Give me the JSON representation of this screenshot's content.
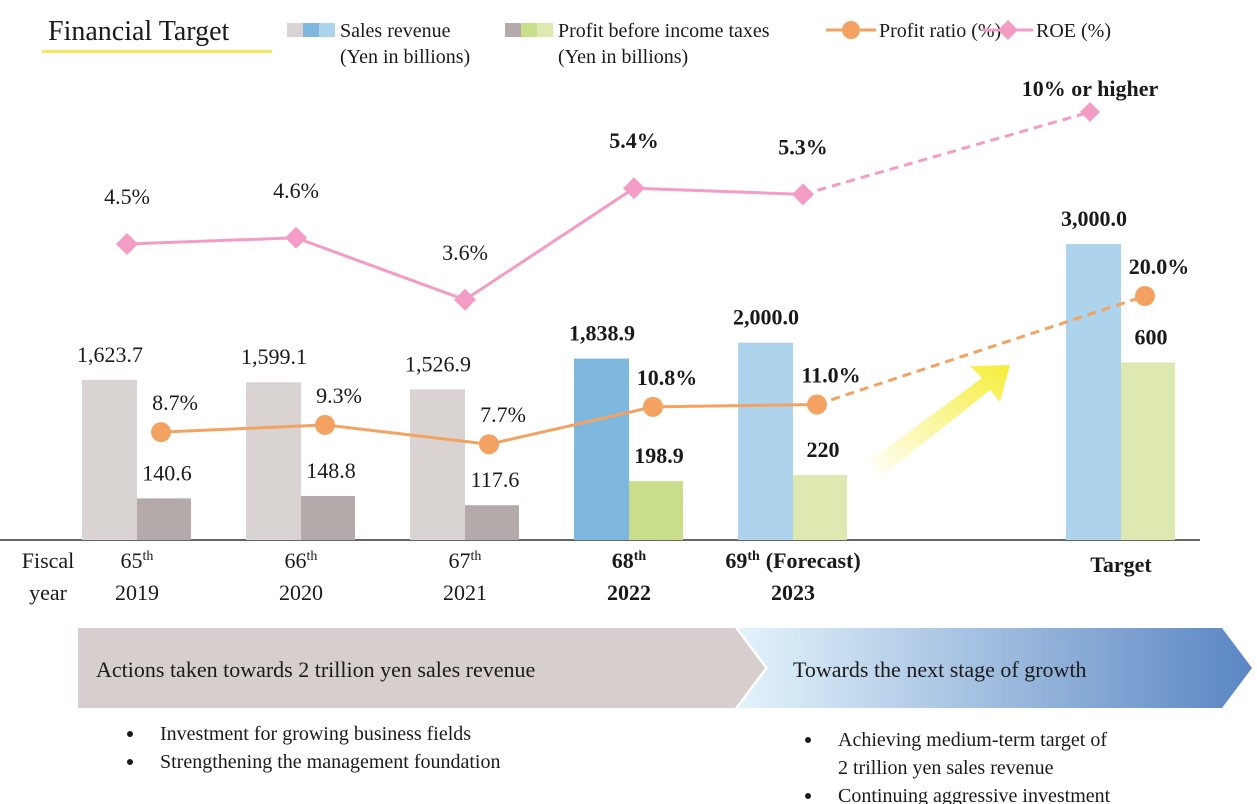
{
  "chart_data": {
    "type": "bar",
    "title": "Financial Target",
    "x_label": [
      "Fiscal",
      "year"
    ],
    "categories": [
      {
        "ordinal": "65",
        "suffix": "th",
        "year": "2019"
      },
      {
        "ordinal": "66",
        "suffix": "th",
        "year": "2020"
      },
      {
        "ordinal": "67",
        "suffix": "th",
        "year": "2021"
      },
      {
        "ordinal": "68",
        "suffix": "th",
        "year": "2022"
      },
      {
        "ordinal": "69",
        "suffix": "th",
        "note": "(Forecast)",
        "year": "2023"
      },
      null,
      {
        "ordinal": "Target"
      }
    ],
    "emphasis_from": 3,
    "dashed_from": 4,
    "series": [
      {
        "name": [
          "Sales revenue",
          "(Yen in billions)"
        ],
        "type": "bar",
        "axis": "y",
        "colors": [
          "#d9d4d1",
          "#d9d4d1",
          "#d9d4d1",
          "#7fb8df",
          "#aed3ec",
          null,
          "#aed3ec"
        ],
        "values": [
          1623.7,
          1599.1,
          1526.9,
          1838.9,
          2000.0,
          null,
          3000.0
        ],
        "value_labels": [
          "1,623.7",
          "1,599.1",
          "1,526.9",
          "1,838.9",
          "2,000.0",
          null,
          "3,000.0"
        ]
      },
      {
        "name": [
          "Profit before income taxes",
          "(Yen in billions)"
        ],
        "type": "bar",
        "axis": "y2",
        "colors": [
          "#b3aaa9",
          "#b3aaa9",
          "#b3aaa9",
          "#c9de8b",
          "#dde9b1",
          null,
          "#dde9b1"
        ],
        "values": [
          140.6,
          148.8,
          117.6,
          198.9,
          220.0,
          null,
          600.0
        ]
      },
      {
        "name": [
          "Profit ratio (%)"
        ],
        "type": "line",
        "axis": "y3",
        "color": "#f4a261",
        "values": [
          8.7,
          9.3,
          7.7,
          10.8,
          11.0,
          null,
          20.0
        ],
        "value_labels": [
          "8.7%",
          "9.3%",
          "7.7%",
          "10.8%",
          "11.0%",
          null,
          "20.0%"
        ]
      },
      {
        "name": [
          "ROE (%)"
        ],
        "type": "line",
        "axis": "y4",
        "color": "#f39cc6",
        "values": [
          4.5,
          4.6,
          3.6,
          5.4,
          5.3,
          null,
          null
        ],
        "value_labels": [
          "4.5%",
          "4.6%",
          "3.6%",
          "5.4%",
          "5.3%",
          null,
          null
        ]
      }
    ],
    "ylim": [
      0,
      3000
    ],
    "y2lim": [
      0,
      1000
    ],
    "y3lim": [
      0,
      20
    ],
    "y4lim": [
      3,
      6
    ],
    "annotation": {
      "label": "10% or higher"
    }
  },
  "actions": {
    "left": {
      "title": "Actions taken towards 2 trillion yen sales revenue",
      "bullets": [
        [
          "Investment for growing business fields"
        ],
        [
          "Strengthening the management foundation"
        ]
      ]
    },
    "right": {
      "title": "Towards the next stage of growth",
      "bullets": [
        [
          "Achieving medium-term target of",
          "2 trillion yen sales revenue"
        ],
        [
          "Continuing aggressive investment"
        ]
      ]
    }
  }
}
